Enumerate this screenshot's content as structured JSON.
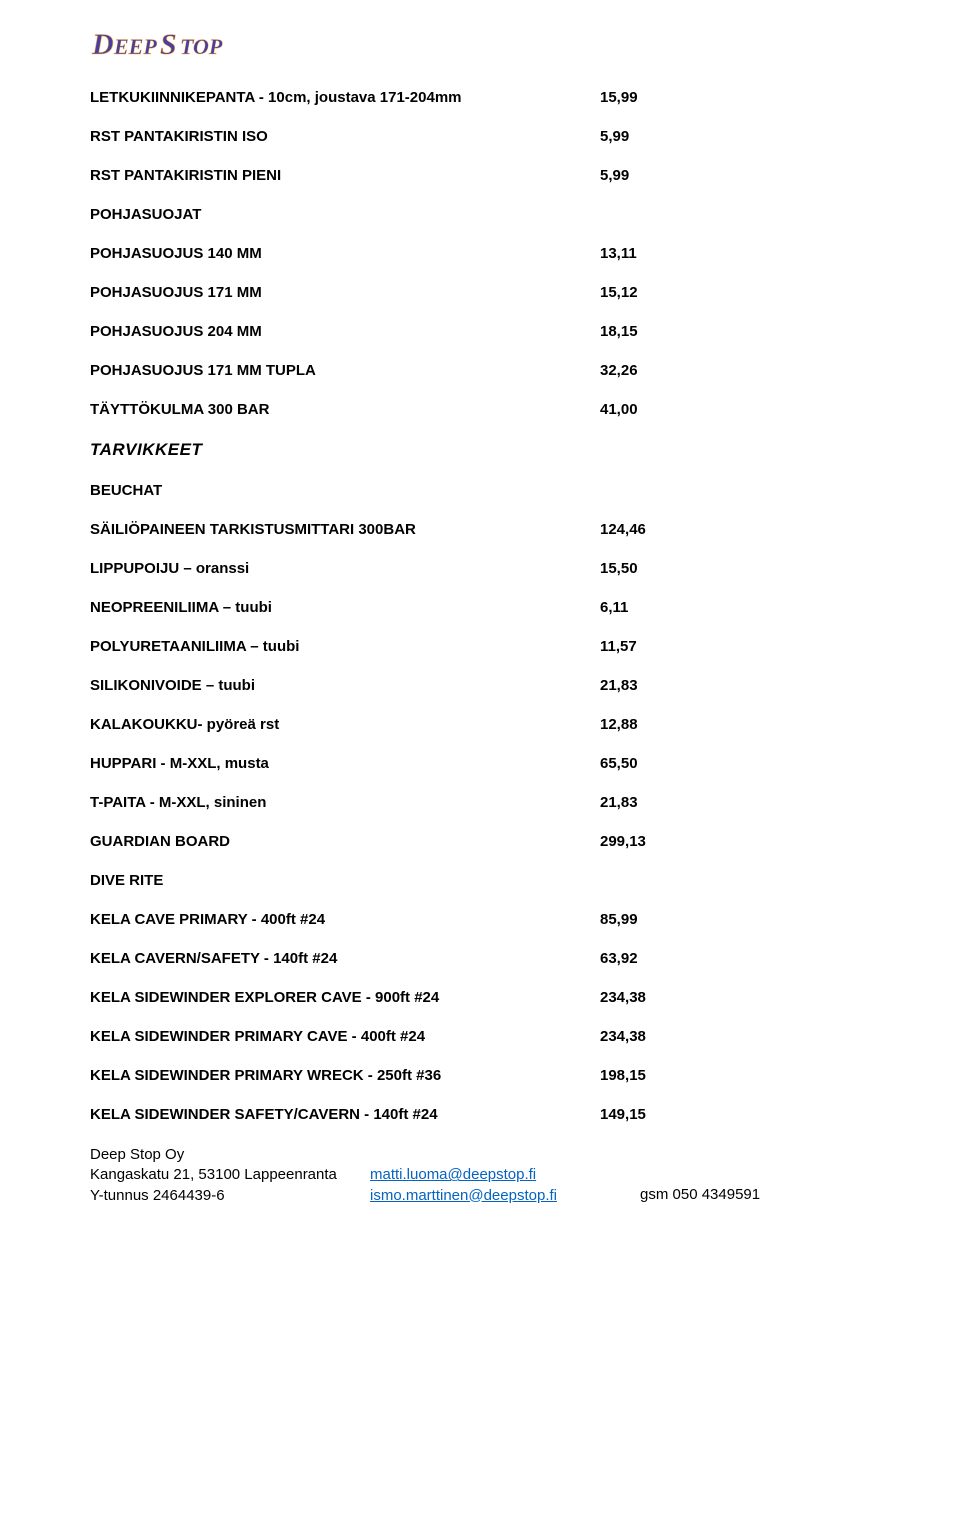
{
  "logo": {
    "text": "DEEPSTOP",
    "fill": "#4a3f9e",
    "stroke": "#ffb84d"
  },
  "rows": [
    {
      "label": "LETKUKIINNIKEPANTA - 10cm, joustava 171-204mm",
      "value": "15,99"
    },
    {
      "label": "RST PANTAKIRISTIN ISO",
      "value": "5,99"
    },
    {
      "label": "RST PANTAKIRISTIN PIENI",
      "value": "5,99"
    }
  ],
  "header1": "POHJASUOJAT",
  "rows2": [
    {
      "label": "POHJASUOJUS 140 MM",
      "value": "13,11"
    },
    {
      "label": "POHJASUOJUS 171 MM",
      "value": "15,12"
    },
    {
      "label": "POHJASUOJUS 204 MM",
      "value": "18,15"
    },
    {
      "label": "POHJASUOJUS 171 MM TUPLA",
      "value": "32,26"
    },
    {
      "label": "TÄYTTÖKULMA 300 BAR",
      "value": "41,00"
    }
  ],
  "sectionTitle": "TARVIKKEET",
  "header2": "BEUCHAT",
  "rows3": [
    {
      "label": "SÄILIÖPAINEEN TARKISTUSMITTARI 300BAR",
      "value": "124,46"
    },
    {
      "label": "LIPPUPOIJU – oranssi",
      "value": "15,50"
    },
    {
      "label": "NEOPREENILIIMA – tuubi",
      "value": "6,11"
    },
    {
      "label": "POLYURETAANILIIMA – tuubi",
      "value": "11,57"
    },
    {
      "label": "SILIKONIVOIDE – tuubi",
      "value": "21,83"
    },
    {
      "label": "KALAKOUKKU- pyöreä rst",
      "value": "12,88"
    },
    {
      "label": "HUPPARI - M-XXL, musta",
      "value": "65,50"
    },
    {
      "label": "T-PAITA - M-XXL, sininen",
      "value": "21,83"
    },
    {
      "label": "GUARDIAN BOARD",
      "value": "299,13"
    }
  ],
  "header3": "DIVE RITE",
  "rows4": [
    {
      "label": "KELA CAVE PRIMARY - 400ft #24",
      "value": "85,99"
    },
    {
      "label": "KELA CAVERN/SAFETY - 140ft #24",
      "value": "63,92"
    },
    {
      "label": "KELA SIDEWINDER EXPLORER CAVE - 900ft #24",
      "value": "234,38"
    },
    {
      "label": "KELA SIDEWINDER PRIMARY CAVE - 400ft #24",
      "value": "234,38"
    },
    {
      "label": "KELA SIDEWINDER PRIMARY WRECK - 250ft #36",
      "value": "198,15"
    },
    {
      "label": "KELA SIDEWINDER SAFETY/CAVERN - 140ft #24",
      "value": "149,15"
    }
  ],
  "footer": {
    "company": "Deep Stop Oy",
    "address": "Kangaskatu 21, 53100 Lappeenranta",
    "vat": "Y-tunnus 2464439-6",
    "email1": "matti.luoma@deepstop.fi",
    "email2": "ismo.marttinen@deepstop.fi",
    "phone": "gsm 050 4349591"
  }
}
